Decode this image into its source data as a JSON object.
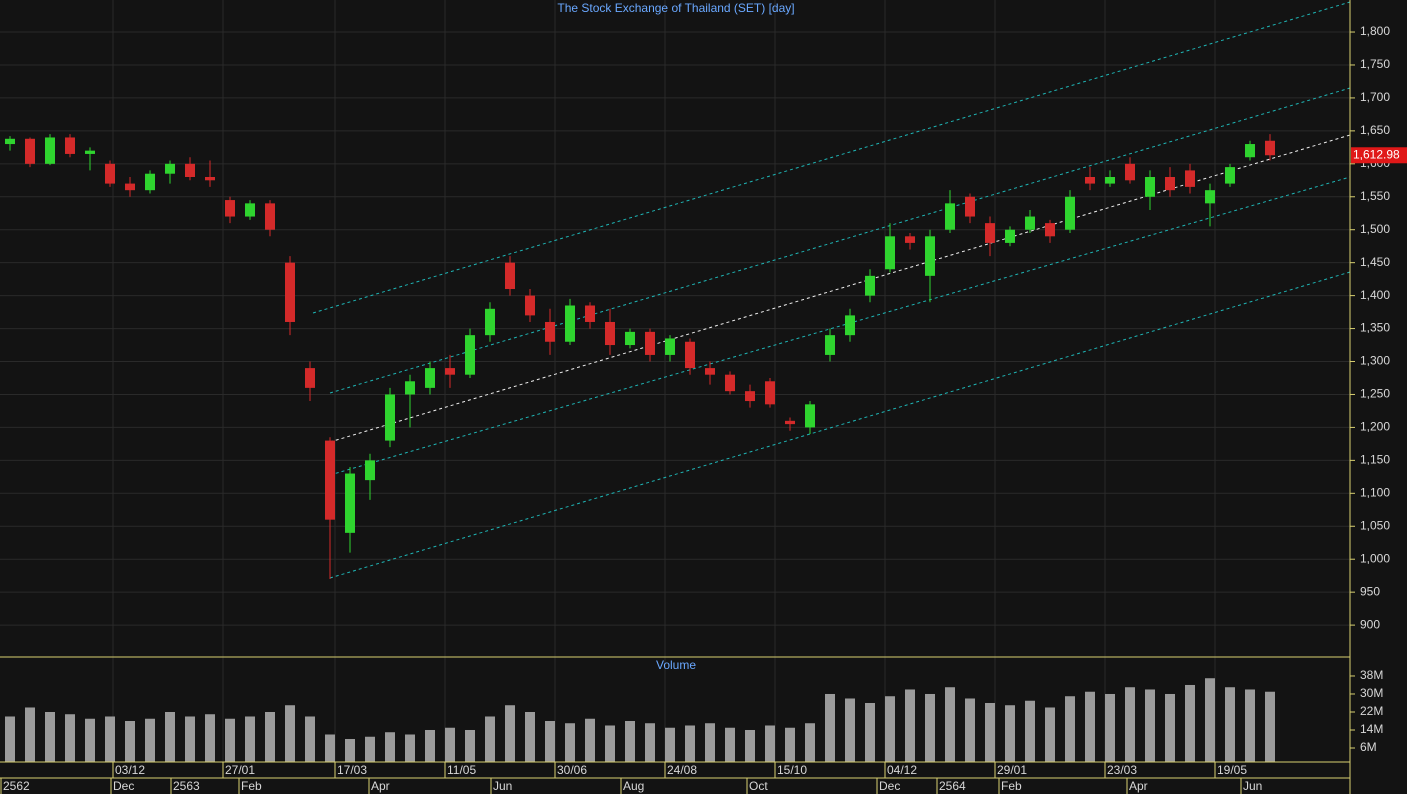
{
  "chart_data": [
    {
      "type": "candlestick",
      "title": "The Stock Exchange of Thailand (SET) [day]",
      "open": [
        1630,
        1638,
        1600,
        1640,
        1615,
        1600,
        1570,
        1560,
        1585,
        1600,
        1580,
        1545,
        1520,
        1540,
        1450,
        1290,
        1180,
        1040,
        1120,
        1180,
        1250,
        1260,
        1290,
        1280,
        1340,
        1450,
        1400,
        1360,
        1330,
        1385,
        1360,
        1325,
        1345,
        1310,
        1330,
        1290,
        1280,
        1255,
        1270,
        1210,
        1200,
        1310,
        1340,
        1400,
        1440,
        1490,
        1430,
        1500,
        1550,
        1510,
        1480,
        1500,
        1510,
        1500,
        1580,
        1570,
        1600,
        1550,
        1580,
        1590,
        1540,
        1570,
        1610,
        1635
      ],
      "high": [
        1642,
        1640,
        1645,
        1645,
        1625,
        1605,
        1580,
        1590,
        1605,
        1610,
        1605,
        1550,
        1545,
        1545,
        1460,
        1300,
        1185,
        1140,
        1160,
        1260,
        1280,
        1300,
        1310,
        1350,
        1390,
        1460,
        1410,
        1380,
        1395,
        1390,
        1380,
        1350,
        1350,
        1340,
        1335,
        1300,
        1285,
        1265,
        1275,
        1215,
        1240,
        1350,
        1380,
        1440,
        1510,
        1495,
        1500,
        1560,
        1555,
        1520,
        1505,
        1530,
        1515,
        1560,
        1595,
        1590,
        1610,
        1590,
        1595,
        1600,
        1570,
        1600,
        1635,
        1645
      ],
      "low": [
        1620,
        1595,
        1598,
        1610,
        1590,
        1565,
        1550,
        1555,
        1570,
        1575,
        1565,
        1510,
        1515,
        1490,
        1340,
        1240,
        970,
        1010,
        1090,
        1170,
        1200,
        1250,
        1260,
        1275,
        1330,
        1400,
        1360,
        1310,
        1325,
        1350,
        1310,
        1320,
        1300,
        1300,
        1280,
        1265,
        1250,
        1230,
        1230,
        1195,
        1190,
        1300,
        1330,
        1390,
        1435,
        1470,
        1390,
        1495,
        1510,
        1460,
        1475,
        1495,
        1480,
        1495,
        1560,
        1565,
        1570,
        1530,
        1550,
        1555,
        1505,
        1565,
        1605,
        1605
      ],
      "close": [
        1638,
        1600,
        1640,
        1615,
        1620,
        1570,
        1560,
        1585,
        1600,
        1580,
        1575,
        1520,
        1540,
        1500,
        1360,
        1260,
        1060,
        1130,
        1150,
        1250,
        1270,
        1290,
        1280,
        1340,
        1380,
        1410,
        1370,
        1330,
        1385,
        1360,
        1325,
        1345,
        1310,
        1335,
        1290,
        1280,
        1255,
        1240,
        1235,
        1205,
        1235,
        1340,
        1370,
        1430,
        1490,
        1480,
        1490,
        1540,
        1520,
        1480,
        1500,
        1520,
        1490,
        1550,
        1570,
        1580,
        1575,
        1580,
        1560,
        1565,
        1560,
        1595,
        1630,
        1613
      ],
      "up_color": "#2fd42f",
      "down_color": "#d42a2a",
      "ylim": [
        851.6,
        1848.6
      ],
      "yticks": [
        {
          "value": 900,
          "label": "900"
        },
        {
          "value": 950,
          "label": "950"
        },
        {
          "value": 1000,
          "label": "1,000"
        },
        {
          "value": 1050,
          "label": "1,050"
        },
        {
          "value": 1100,
          "label": "1,100"
        },
        {
          "value": 1150,
          "label": "1,150"
        },
        {
          "value": 1200,
          "label": "1,200"
        },
        {
          "value": 1250,
          "label": "1,250"
        },
        {
          "value": 1300,
          "label": "1,300"
        },
        {
          "value": 1350,
          "label": "1,350"
        },
        {
          "value": 1400,
          "label": "1,400"
        },
        {
          "value": 1450,
          "label": "1,450"
        },
        {
          "value": 1500,
          "label": "1,500"
        },
        {
          "value": 1550,
          "label": "1,550"
        },
        {
          "value": 1600,
          "label": "1,600"
        },
        {
          "value": 1650,
          "label": "1,650"
        },
        {
          "value": 1700,
          "label": "1,700"
        },
        {
          "value": 1750,
          "label": "1,750"
        },
        {
          "value": 1800,
          "label": "1,800"
        }
      ],
      "last_price": {
        "value": 1612.98,
        "label": "1,612.98"
      },
      "grid": true
    },
    {
      "type": "bar",
      "title": "Volume",
      "values": [
        20,
        24,
        22,
        21,
        19,
        20,
        18,
        19,
        22,
        20,
        21,
        19,
        20,
        22,
        25,
        20,
        12,
        10,
        11,
        13,
        12,
        14,
        15,
        14,
        20,
        25,
        22,
        18,
        17,
        19,
        16,
        18,
        17,
        15,
        16,
        17,
        15,
        14,
        16,
        15,
        17,
        30,
        28,
        26,
        29,
        32,
        30,
        33,
        28,
        26,
        25,
        27,
        24,
        29,
        31,
        30,
        33,
        32,
        30,
        34,
        37,
        33,
        32,
        31
      ],
      "color": "#9a9a9a",
      "ylim": [
        0,
        45.1
      ],
      "yticks": [
        {
          "value": 6,
          "label": "6M"
        },
        {
          "value": 14,
          "label": "14M"
        },
        {
          "value": 22,
          "label": "22M"
        },
        {
          "value": 30,
          "label": "30M"
        },
        {
          "value": 38,
          "label": "38M"
        }
      ]
    }
  ],
  "time_axis": {
    "top": [
      "03/12",
      "27/01",
      "17/03",
      "11/05",
      "30/06",
      "24/08",
      "15/10",
      "04/12",
      "29/01",
      "23/03",
      "19/05"
    ],
    "bottom": [
      "2562",
      "Dec",
      "2563",
      "Feb",
      "Apr",
      "Jun",
      "Aug",
      "Oct",
      "Dec",
      "2564",
      "Feb",
      "Apr",
      "Jun"
    ]
  }
}
